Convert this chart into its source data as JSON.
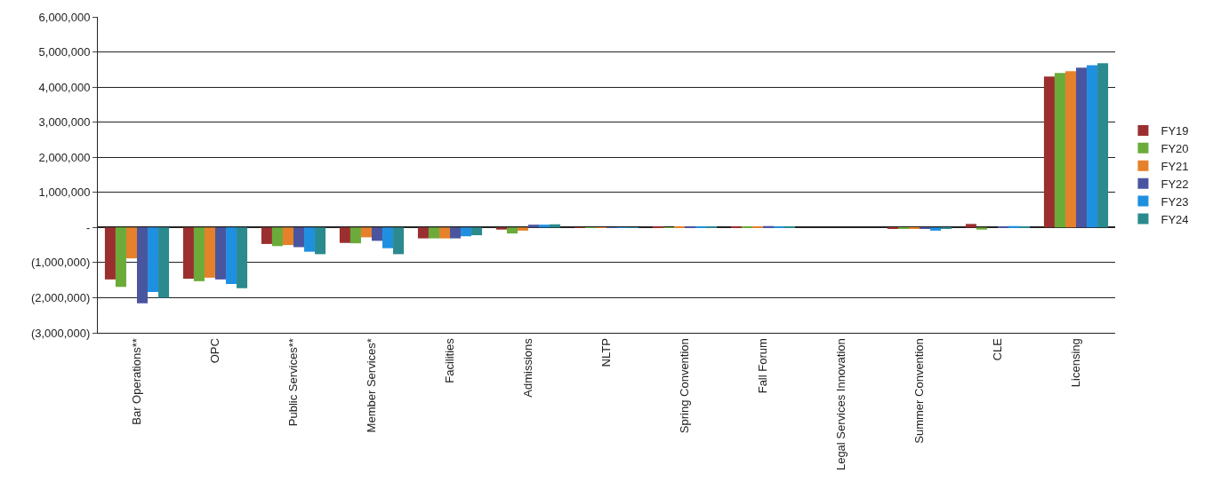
{
  "chart_data": {
    "type": "bar",
    "categories": [
      "Bar Operations**",
      "OPC",
      "Public Services**",
      "Member Services*",
      "Facilities",
      "Admissions",
      "NLTP",
      "Spring Convention",
      "Fall Forum",
      "Legal Services Innovation",
      "Summer Convention",
      "CLE",
      "Licensing"
    ],
    "series": [
      {
        "name": "FY19",
        "color": "#9b2f2f",
        "values": [
          -1480000,
          -1460000,
          -470000,
          -440000,
          -310000,
          -60000,
          -10000,
          10000,
          10000,
          0,
          -20000,
          100000,
          4300000
        ]
      },
      {
        "name": "FY20",
        "color": "#6bab3a",
        "values": [
          -1690000,
          -1530000,
          -530000,
          -450000,
          -310000,
          -170000,
          -10000,
          -10000,
          10000,
          0,
          -20000,
          -60000,
          4400000
        ]
      },
      {
        "name": "FY21",
        "color": "#e5812a",
        "values": [
          -880000,
          -1430000,
          -500000,
          -280000,
          -310000,
          -90000,
          -10000,
          20000,
          20000,
          0,
          -20000,
          0,
          4450000
        ]
      },
      {
        "name": "FY22",
        "color": "#4a55a0",
        "values": [
          -2160000,
          -1480000,
          -560000,
          -380000,
          -310000,
          80000,
          -10000,
          20000,
          40000,
          0,
          -20000,
          20000,
          4550000
        ]
      },
      {
        "name": "FY23",
        "color": "#1f8fe0",
        "values": [
          -1840000,
          -1610000,
          -690000,
          -590000,
          -250000,
          80000,
          -10000,
          20000,
          30000,
          0,
          -90000,
          40000,
          4620000
        ]
      },
      {
        "name": "FY24",
        "color": "#2a8a8e",
        "values": [
          -2000000,
          -1730000,
          -760000,
          -760000,
          -220000,
          90000,
          -10000,
          10000,
          10000,
          0,
          -30000,
          20000,
          4680000
        ]
      }
    ],
    "ylim": [
      -3000000,
      6000000
    ],
    "yticks": [
      {
        "value": -3000000,
        "label": "(3,000,000)"
      },
      {
        "value": -2000000,
        "label": "(2,000,000)"
      },
      {
        "value": -1000000,
        "label": "(1,000,000)"
      },
      {
        "value": 0,
        "label": "-"
      },
      {
        "value": 1000000,
        "label": "1,000,000"
      },
      {
        "value": 2000000,
        "label": "2,000,000"
      },
      {
        "value": 3000000,
        "label": "3,000,000"
      },
      {
        "value": 4000000,
        "label": "4,000,000"
      },
      {
        "value": 5000000,
        "label": "5,000,000"
      },
      {
        "value": 6000000,
        "label": "6,000,000"
      }
    ],
    "grid": "y",
    "legend": "right"
  }
}
